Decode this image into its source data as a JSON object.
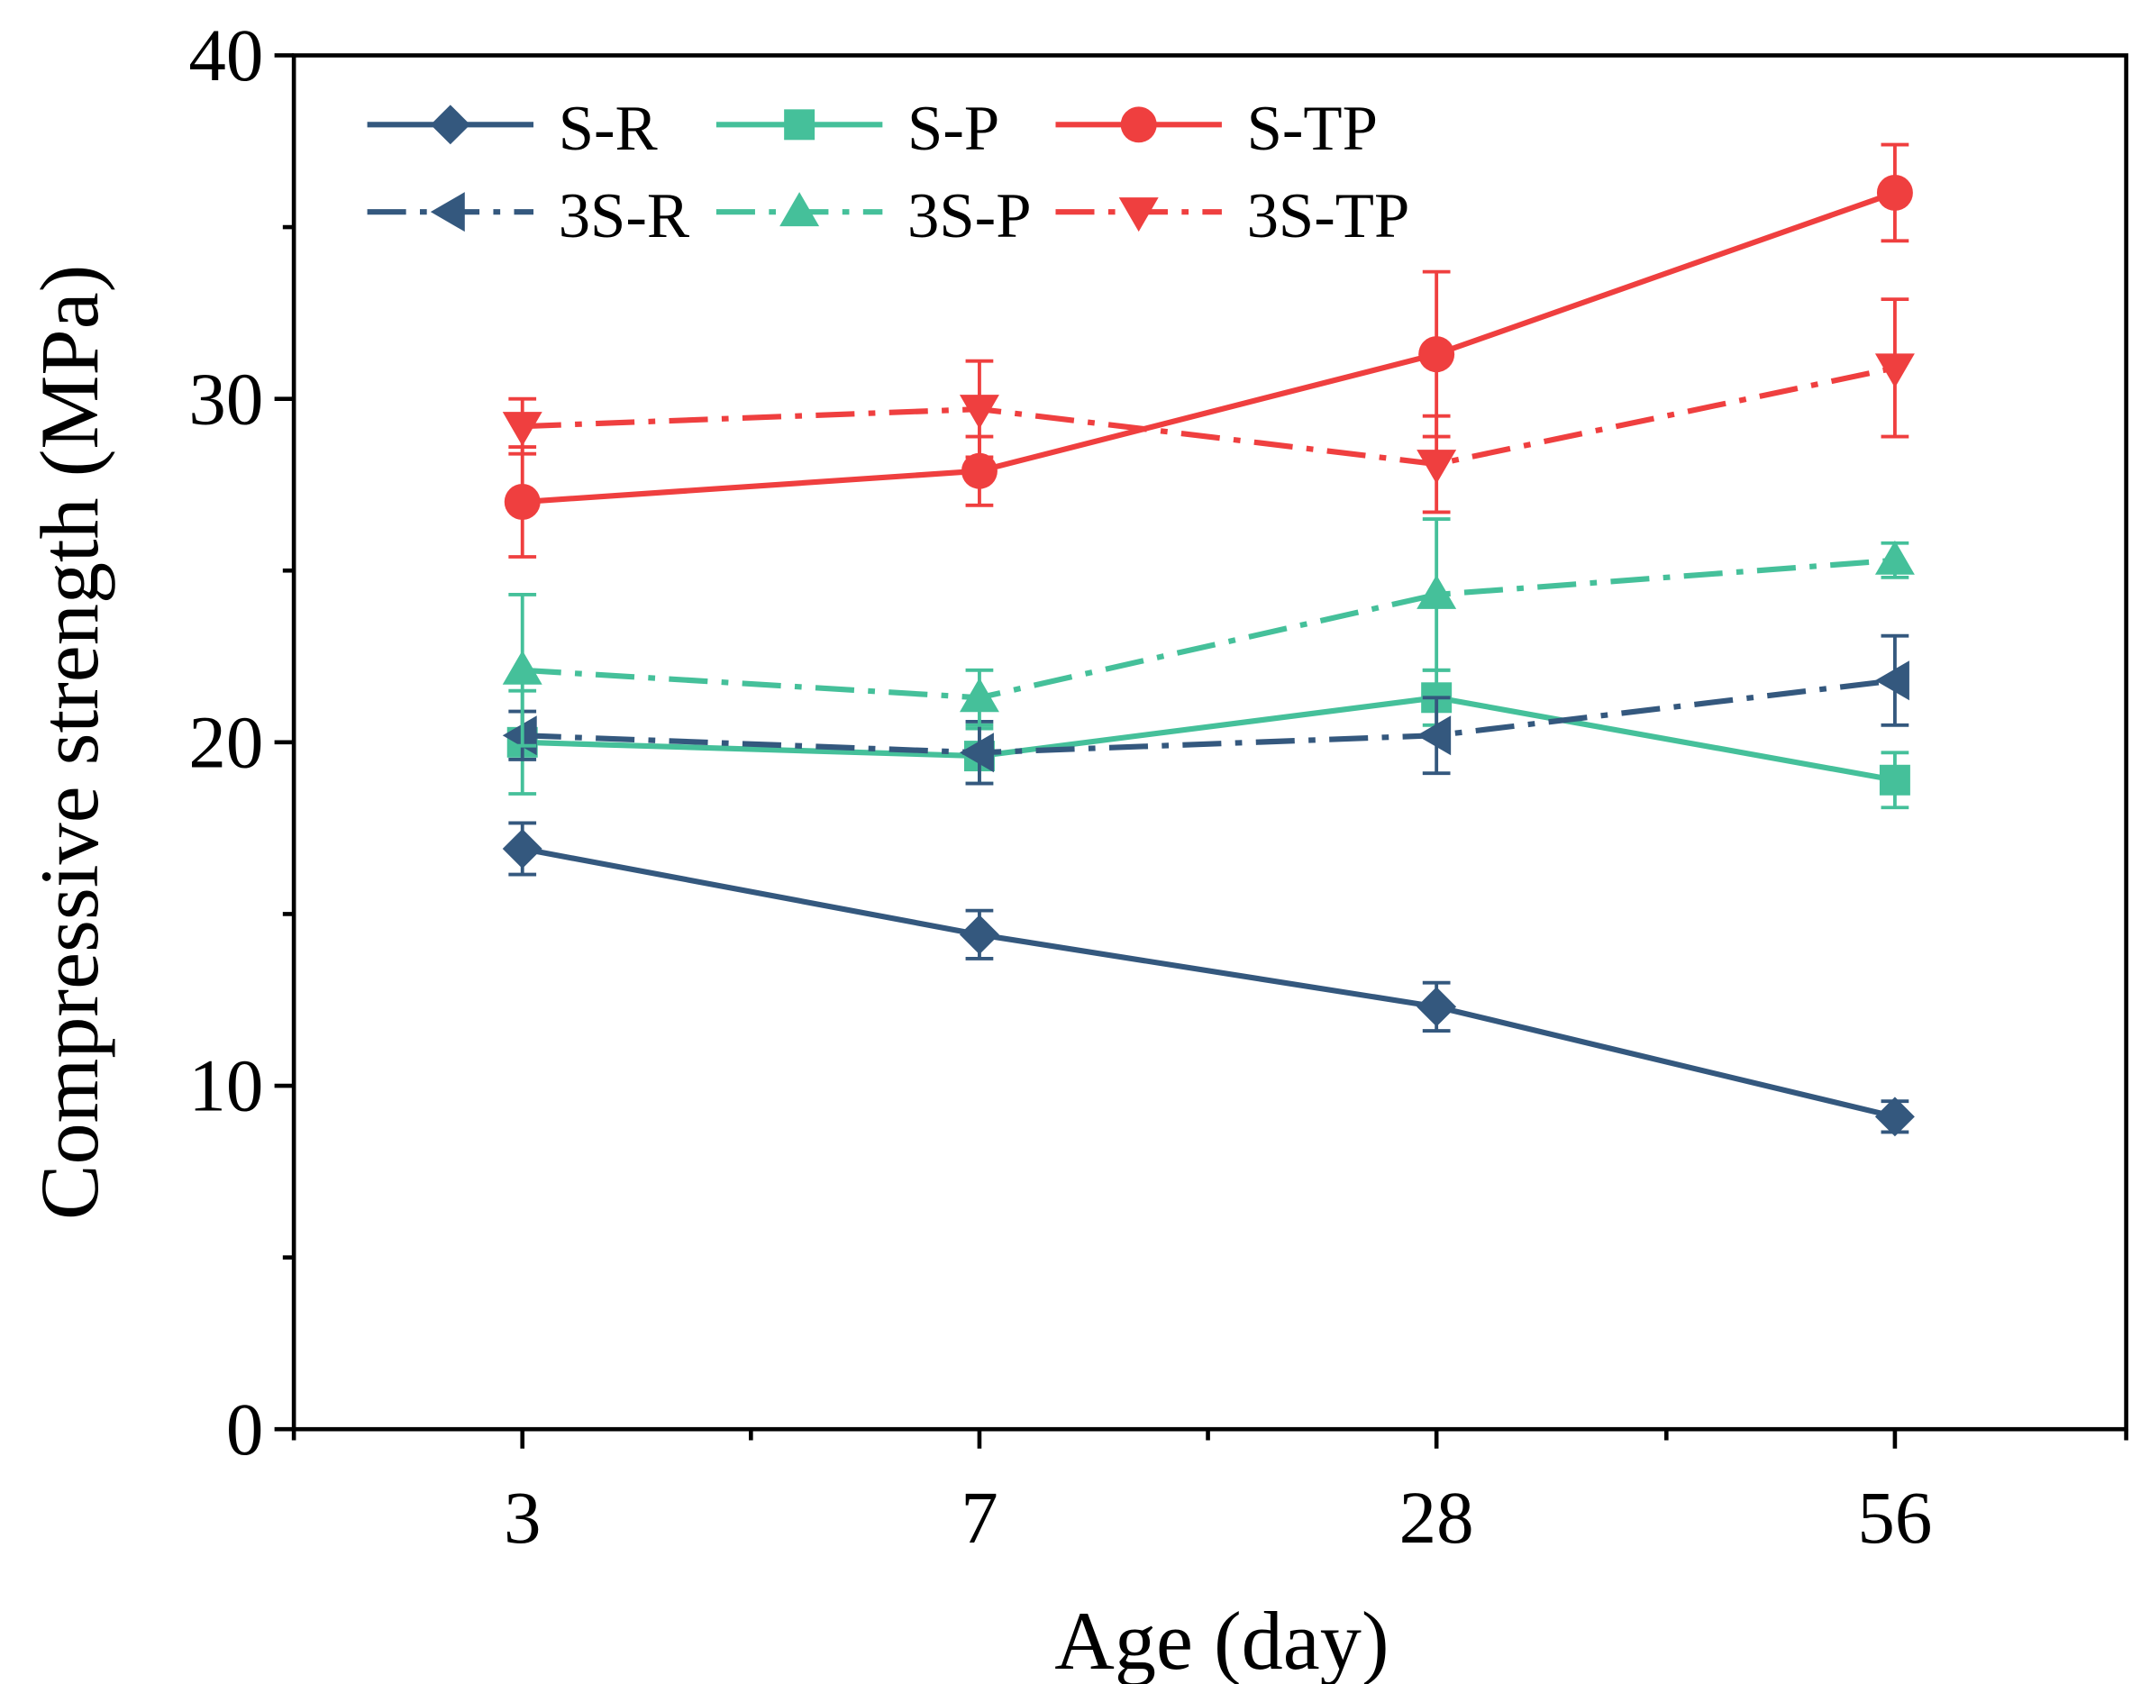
{
  "chart_data": {
    "type": "line",
    "title": "",
    "xlabel": "Age (day)",
    "ylabel": "Compressive strength (MPa)",
    "categories": [
      "3",
      "7",
      "28",
      "56"
    ],
    "ylim": [
      0,
      40
    ],
    "yticks": [
      "0",
      "10",
      "20",
      "30",
      "40"
    ],
    "grid": false,
    "legend_placement": "top-left",
    "series": [
      {
        "name": "S-R",
        "color": "#34587e",
        "marker": "diamond",
        "dash": "solid",
        "values": [
          16.9,
          14.4,
          12.3,
          9.1
        ],
        "errors": [
          0.75,
          0.7,
          0.7,
          0.45
        ]
      },
      {
        "name": "S-P",
        "color": "#45c09a",
        "marker": "square",
        "dash": "solid",
        "values": [
          20.0,
          19.6,
          21.3,
          18.9
        ],
        "errors": [
          1.5,
          0.8,
          0.8,
          0.8
        ]
      },
      {
        "name": "S-TP",
        "color": "#ef3f3f",
        "marker": "circle",
        "dash": "solid",
        "values": [
          27.0,
          27.9,
          31.3,
          36.0
        ],
        "errors": [
          1.6,
          1.0,
          2.4,
          1.4
        ]
      },
      {
        "name": "3S-R",
        "color": "#34587e",
        "marker": "triangle-left",
        "dash": "dashdot",
        "values": [
          20.2,
          19.7,
          20.2,
          21.8
        ],
        "errors": [
          0.7,
          0.9,
          1.1,
          1.3
        ]
      },
      {
        "name": "3S-P",
        "color": "#45c09a",
        "marker": "triangle-up",
        "dash": "dashdot",
        "values": [
          22.1,
          21.3,
          24.3,
          25.3
        ],
        "errors": [
          2.2,
          0.8,
          2.2,
          0.5
        ]
      },
      {
        "name": "3S-TP",
        "color": "#ef3f3f",
        "marker": "triangle-down",
        "dash": "dashdot",
        "values": [
          29.2,
          29.7,
          28.1,
          30.9
        ],
        "errors": [
          0.8,
          1.4,
          1.4,
          2.0
        ]
      }
    ]
  }
}
